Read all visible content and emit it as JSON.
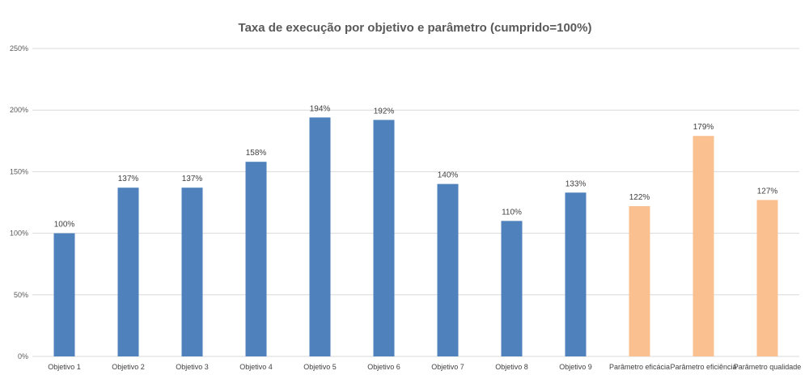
{
  "chart_data": {
    "type": "bar",
    "title": "Taxa de execução por objetivo e parâmetro (cumprido=100%)",
    "xlabel": "",
    "ylabel": "",
    "ylim": [
      0,
      250
    ],
    "yticks": [
      0,
      50,
      100,
      150,
      200,
      250
    ],
    "ytick_labels": [
      "0%",
      "50%",
      "100%",
      "150%",
      "200%",
      "250%"
    ],
    "grid": true,
    "legend": "none",
    "categories": [
      "Objetivo 1",
      "Objetivo 2",
      "Objetivo 3",
      "Objetivo 4",
      "Objetivo 5",
      "Objetivo 6",
      "Objetivo 7",
      "Objetivo 8",
      "Objetivo 9",
      "Parâmetro eficácia",
      "Parâmetro eficiência",
      "Parâmetro qualidade"
    ],
    "values": [
      100,
      137,
      137,
      158,
      194,
      192,
      140,
      110,
      133,
      122,
      179,
      127
    ],
    "data_labels": [
      "100%",
      "137%",
      "137%",
      "158%",
      "194%",
      "192%",
      "140%",
      "110%",
      "133%",
      "122%",
      "179%",
      "127%"
    ],
    "colors": [
      "#4f81bd",
      "#4f81bd",
      "#4f81bd",
      "#4f81bd",
      "#4f81bd",
      "#4f81bd",
      "#4f81bd",
      "#4f81bd",
      "#4f81bd",
      "#fac090",
      "#fac090",
      "#fac090"
    ]
  }
}
